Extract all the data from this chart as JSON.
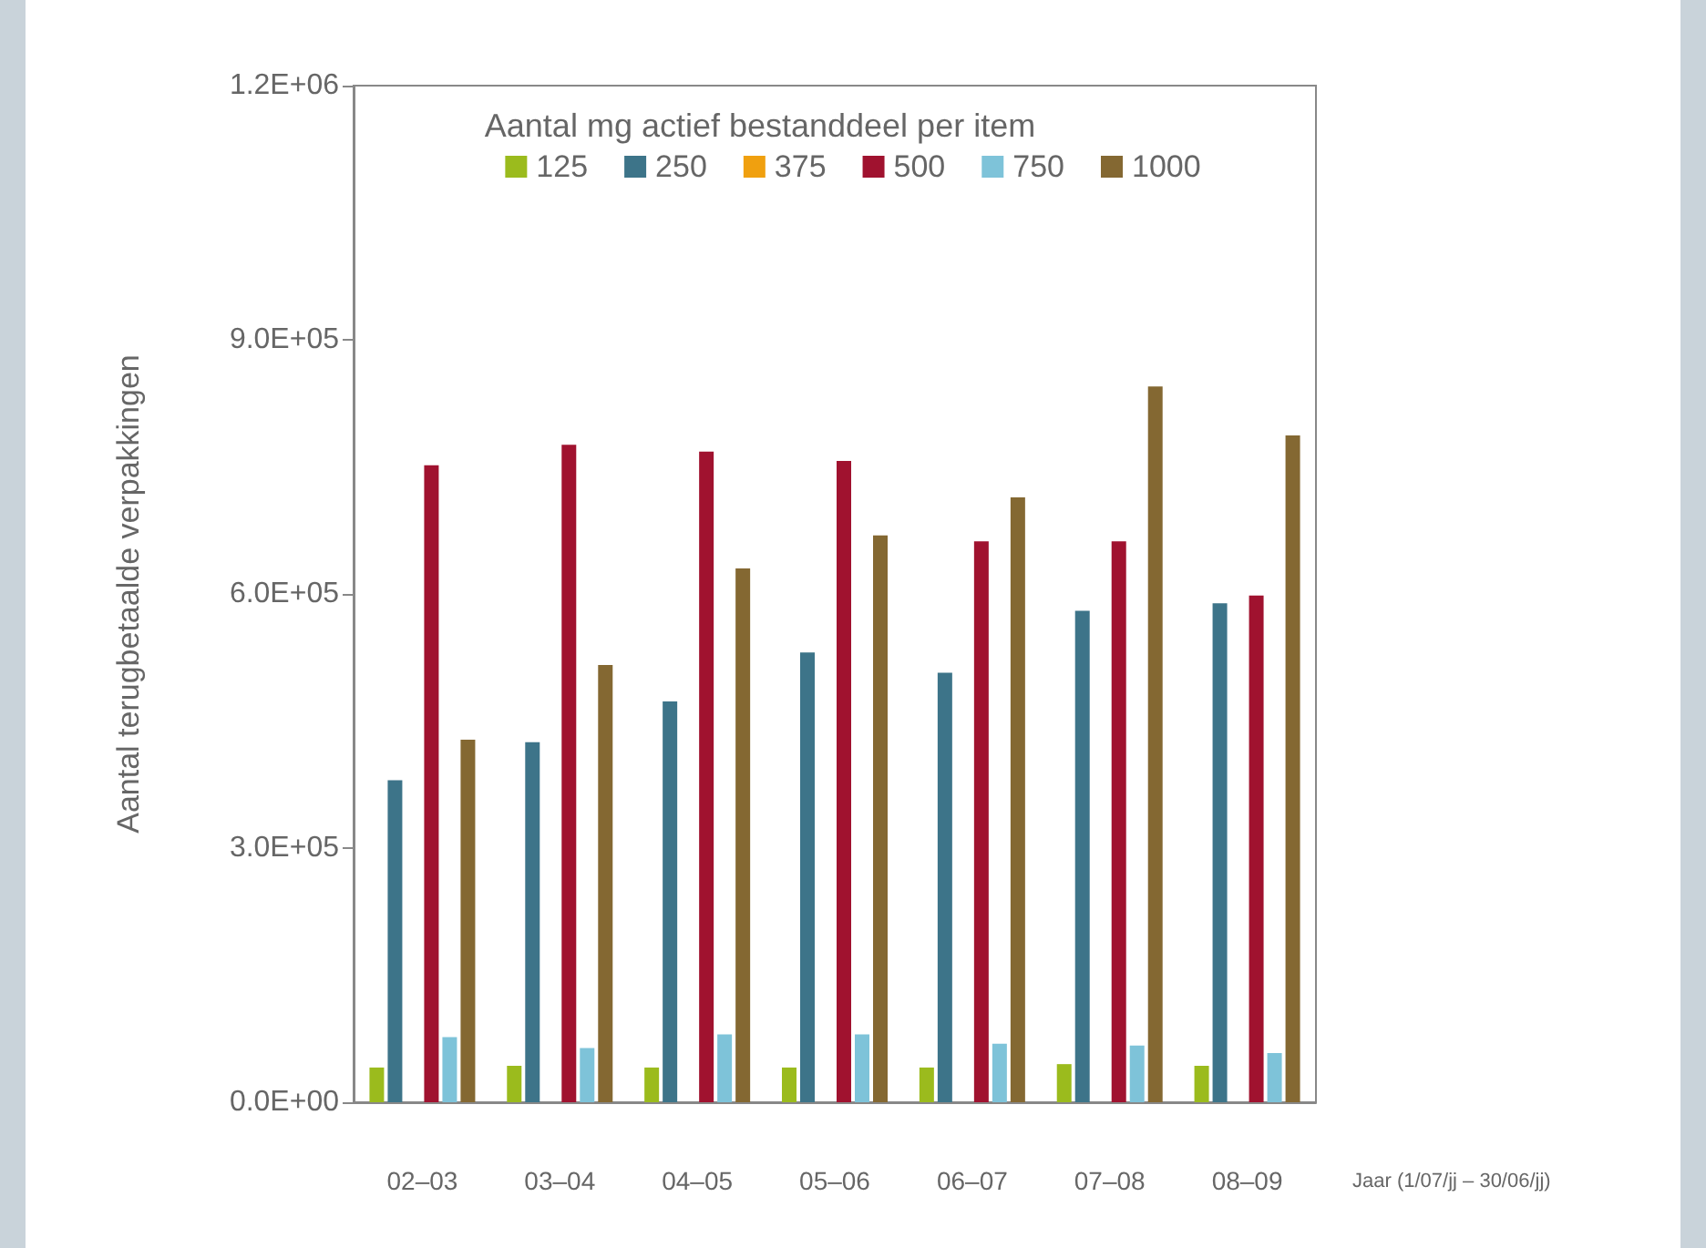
{
  "chart_data": {
    "type": "bar",
    "ylabel": "Aantal terugbetaalde verpakkingen",
    "xlabel": "Jaar (1/07/jj – 30/06/jj)",
    "legend_title": "Aantal mg actief bestanddeel per item",
    "categories": [
      "02–03",
      "03–04",
      "04–05",
      "05–06",
      "06–07",
      "07–08",
      "08–09"
    ],
    "series": [
      {
        "name": "125",
        "color": "#9bbb1d",
        "values": [
          41000,
          43000,
          41000,
          41000,
          41000,
          45000,
          43000
        ]
      },
      {
        "name": "250",
        "color": "#3d7489",
        "values": [
          380000,
          425000,
          473000,
          531000,
          507000,
          580000,
          589000
        ]
      },
      {
        "name": "375",
        "color": "#f0a00f",
        "values": [
          null,
          null,
          null,
          null,
          null,
          null,
          null
        ]
      },
      {
        "name": "500",
        "color": "#a0122f",
        "values": [
          752000,
          776000,
          768000,
          757000,
          662000,
          662000,
          598000
        ]
      },
      {
        "name": "750",
        "color": "#7ec3d9",
        "values": [
          77000,
          64000,
          80000,
          80000,
          69000,
          67000,
          58000
        ]
      },
      {
        "name": "1000",
        "color": "#846832",
        "values": [
          428000,
          516000,
          630000,
          669000,
          714000,
          845000,
          787000
        ]
      }
    ],
    "ylim": [
      0,
      1200000
    ],
    "yticks": [
      {
        "value": 0,
        "label": "0.0E+00"
      },
      {
        "value": 300000,
        "label": "3.0E+05"
      },
      {
        "value": 600000,
        "label": "6.0E+05"
      },
      {
        "value": 900000,
        "label": "9.0E+05"
      },
      {
        "value": 1200000,
        "label": "1.2E+06"
      }
    ],
    "grid": false,
    "legend": "top"
  }
}
